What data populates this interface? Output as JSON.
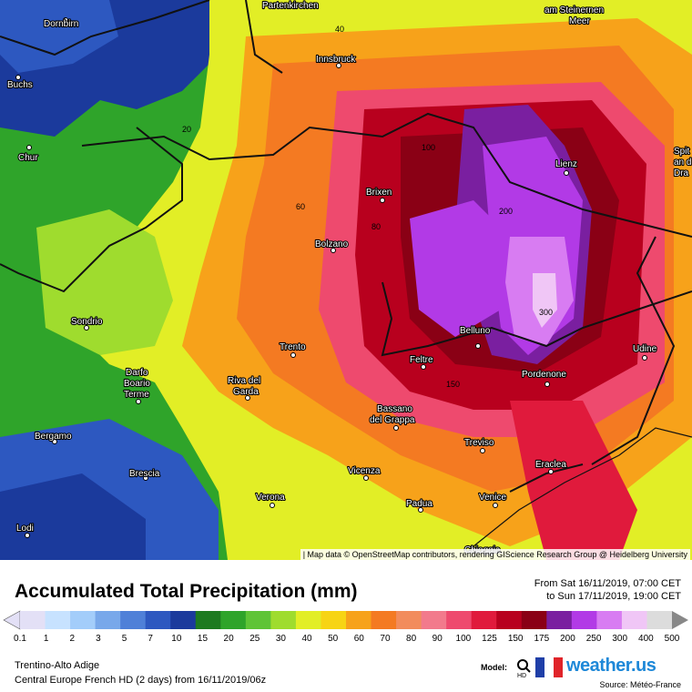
{
  "map": {
    "cities": [
      {
        "name": "Partenkirchen"
      },
      {
        "name": "am Steinernen"
      },
      {
        "name": "Meer"
      },
      {
        "name": "Dornbirn"
      },
      {
        "name": "Buchs"
      },
      {
        "name": "Innsbruck"
      },
      {
        "name": "Chur"
      },
      {
        "name": "Lienz"
      },
      {
        "name": "Spit"
      },
      {
        "name": "an d"
      },
      {
        "name": "Dra"
      },
      {
        "name": "Brixen"
      },
      {
        "name": "Bolzano"
      },
      {
        "name": "Sondrio"
      },
      {
        "name": "Trento"
      },
      {
        "name": "Belluno"
      },
      {
        "name": "Udine"
      },
      {
        "name": "Darfo"
      },
      {
        "name": "Boario"
      },
      {
        "name": "Terme"
      },
      {
        "name": "Riva del"
      },
      {
        "name": "Garda"
      },
      {
        "name": "Feltre"
      },
      {
        "name": "Pordenone"
      },
      {
        "name": "Bassano"
      },
      {
        "name": "del Grappa"
      },
      {
        "name": "Bergamo"
      },
      {
        "name": "Treviso"
      },
      {
        "name": "Eraclea"
      },
      {
        "name": "Brescia"
      },
      {
        "name": "Vicenza"
      },
      {
        "name": "Verona"
      },
      {
        "name": "Padua"
      },
      {
        "name": "Venice"
      },
      {
        "name": "Lodi"
      },
      {
        "name": "Chioggia"
      }
    ],
    "contour_labels": [
      "20",
      "40",
      "60",
      "80",
      "100",
      "150",
      "200",
      "300"
    ],
    "attribution": "| Map data © OpenStreetMap contributors, rendering GIScience Research Group @ Heidelberg University"
  },
  "legend": {
    "title": "Accumulated Total Precipitation (mm)",
    "period_from": "From Sat 16/11/2019, 07:00 CET",
    "period_to": "to Sun 17/11/2019, 19:00 CET",
    "ticks": [
      "0.1",
      "1",
      "2",
      "3",
      "5",
      "7",
      "10",
      "15",
      "20",
      "25",
      "30",
      "40",
      "50",
      "60",
      "70",
      "80",
      "90",
      "100",
      "125",
      "150",
      "175",
      "200",
      "250",
      "300",
      "400",
      "500"
    ],
    "colors": [
      "#e3e0f6",
      "#c7e2ff",
      "#a3cdfa",
      "#78a8ea",
      "#4f80d8",
      "#2d58c0",
      "#1b3a9c",
      "#1d7a20",
      "#2fa42a",
      "#5fc436",
      "#9fdc2e",
      "#e2ee26",
      "#f7d414",
      "#f7a21a",
      "#f47a22",
      "#f28c5c",
      "#f27a8c",
      "#ee4a6e",
      "#e01a3c",
      "#b8001e",
      "#8a0015",
      "#7a1fa0",
      "#b23ae6",
      "#d87cf2",
      "#f0c6f6",
      "#dcdcdc"
    ],
    "region": "Trentino-Alto Adige",
    "model_run": "Central Europe French HD  (2 days)  from  16/11/2019/06z",
    "model_label": "Model:",
    "brand": "weather.us",
    "source": "Source: Météo-France"
  }
}
